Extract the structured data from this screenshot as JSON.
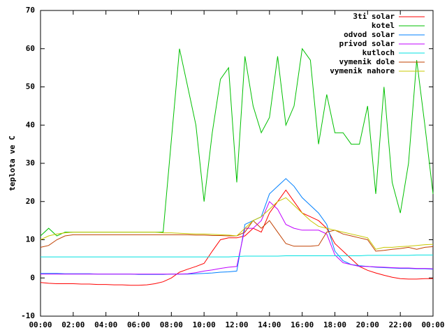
{
  "chart_data": {
    "type": "line",
    "ylabel": "teplota ve C",
    "x": [
      0,
      0.5,
      1,
      1.5,
      2,
      2.5,
      3,
      3.5,
      4,
      4.5,
      5,
      5.5,
      6,
      6.5,
      7,
      7.5,
      8,
      8.5,
      9,
      9.5,
      10,
      10.5,
      11,
      11.5,
      12,
      12.5,
      13,
      13.5,
      14,
      14.5,
      15,
      15.5,
      16,
      16.5,
      17,
      17.5,
      18,
      18.5,
      19,
      19.5,
      20,
      20.5,
      21,
      21.5,
      22,
      22.5,
      23,
      23.5,
      24
    ],
    "xlim": [
      0,
      24
    ],
    "xticks": [
      {
        "value": 0,
        "label": "00:00"
      },
      {
        "value": 2,
        "label": "02:00"
      },
      {
        "value": 4,
        "label": "04:00"
      },
      {
        "value": 6,
        "label": "06:00"
      },
      {
        "value": 8,
        "label": "08:00"
      },
      {
        "value": 10,
        "label": "10:00"
      },
      {
        "value": 12,
        "label": "12:00"
      },
      {
        "value": 14,
        "label": "14:00"
      },
      {
        "value": 16,
        "label": "16:00"
      },
      {
        "value": 18,
        "label": "18:00"
      },
      {
        "value": 20,
        "label": "20:00"
      },
      {
        "value": 22,
        "label": "22:00"
      },
      {
        "value": 24,
        "label": "00:00"
      }
    ],
    "ylim": [
      -10,
      70
    ],
    "yticks": [
      -10,
      0,
      10,
      20,
      30,
      40,
      50,
      60,
      70
    ],
    "grid": false,
    "legend": "top-right",
    "series": [
      {
        "name": "3ti solar",
        "color": "#ff0000",
        "values": [
          -1.2,
          -1.4,
          -1.5,
          -1.5,
          -1.5,
          -1.6,
          -1.6,
          -1.7,
          -1.7,
          -1.8,
          -1.8,
          -1.9,
          -1.9,
          -1.8,
          -1.5,
          -1,
          0,
          1.5,
          2.3,
          3,
          3.8,
          7,
          10,
          10.5,
          10.5,
          11,
          13,
          12,
          17,
          20,
          23,
          20,
          17,
          16,
          15,
          13,
          9,
          7,
          5,
          3,
          2,
          1.3,
          0.7,
          0.2,
          -0.2,
          -0.3,
          -0.3,
          -0.2,
          -0.2
        ]
      },
      {
        "name": "kotel",
        "color": "#00c000",
        "values": [
          11,
          13,
          11,
          12,
          12,
          12,
          12,
          12,
          12,
          12,
          12,
          12,
          12,
          12,
          12,
          12,
          36,
          60,
          50,
          40,
          20,
          38,
          52,
          55,
          25,
          58,
          45,
          38,
          42,
          58,
          40,
          45,
          60,
          57,
          35,
          48,
          38,
          38,
          35,
          35,
          45,
          22,
          50,
          25,
          17,
          30,
          57,
          40,
          22
        ]
      },
      {
        "name": "odvod solar",
        "color": "#0080ff",
        "values": [
          1.2,
          1.2,
          1.2,
          1.1,
          1.1,
          1.1,
          1.1,
          1.0,
          1.0,
          1.0,
          1.0,
          1.0,
          0.9,
          0.9,
          0.9,
          0.9,
          1.0,
          1.0,
          1.0,
          1.1,
          1.2,
          1.3,
          1.5,
          1.6,
          1.8,
          14,
          15,
          16,
          22,
          24,
          26,
          24,
          21,
          19,
          17,
          14,
          7,
          4.5,
          3.5,
          3.2,
          3,
          2.8,
          2.7,
          2.6,
          2.5,
          2.5,
          2.4,
          2.4,
          2.3
        ]
      },
      {
        "name": "privod solar",
        "color": "#c000ff",
        "values": [
          1,
          1,
          1,
          1,
          1,
          1,
          1,
          1,
          1,
          1,
          1,
          1,
          1,
          1,
          1,
          1,
          1,
          1,
          1.1,
          1.4,
          1.8,
          2.1,
          2.5,
          2.8,
          3,
          13,
          13,
          15,
          20,
          18,
          14,
          13,
          12.5,
          12.5,
          12.5,
          11.5,
          6,
          4,
          3.5,
          3,
          3,
          2.9,
          2.8,
          2.7,
          2.6,
          2.6,
          2.5,
          2.5,
          2.4
        ]
      },
      {
        "name": "kutloch",
        "color": "#00e0e0",
        "values": [
          5.5,
          5.5,
          5.5,
          5.5,
          5.5,
          5.5,
          5.5,
          5.5,
          5.5,
          5.5,
          5.5,
          5.5,
          5.5,
          5.5,
          5.5,
          5.5,
          5.5,
          5.5,
          5.5,
          5.5,
          5.5,
          5.5,
          5.5,
          5.5,
          5.6,
          5.7,
          5.7,
          5.7,
          5.7,
          5.7,
          5.8,
          5.8,
          5.8,
          5.8,
          5.8,
          5.8,
          5.8,
          5.8,
          5.8,
          5.8,
          5.9,
          5.9,
          5.9,
          5.9,
          5.9,
          5.9,
          6,
          6,
          6
        ]
      },
      {
        "name": "vymenik dole",
        "color": "#c04000",
        "values": [
          8,
          8.5,
          10,
          11,
          11.3,
          11.3,
          11.3,
          11.3,
          11.3,
          11.3,
          11.3,
          11.3,
          11.3,
          11.3,
          11.3,
          11.3,
          11.3,
          11.3,
          11.3,
          11.2,
          11.2,
          11.1,
          11.1,
          11,
          11,
          12,
          15,
          13,
          15,
          12,
          9,
          8.3,
          8.3,
          8.3,
          8.5,
          12,
          12.5,
          11.5,
          11,
          10.5,
          10,
          7,
          7.2,
          7.5,
          7.7,
          8,
          7.5,
          8,
          8.2
        ]
      },
      {
        "name": "vymenik nahore",
        "color": "#c8c800",
        "values": [
          10,
          11,
          11.5,
          11.8,
          12,
          12,
          12,
          12,
          12,
          12,
          12,
          12,
          12,
          12,
          12,
          11.8,
          11.8,
          11.7,
          11.6,
          11.5,
          11.5,
          11.4,
          11.3,
          11.2,
          11,
          13,
          15,
          16,
          18,
          20,
          21,
          19,
          17,
          15,
          13.5,
          13,
          12.5,
          12,
          11.5,
          11,
          10.5,
          7.5,
          8,
          8,
          8.2,
          8.3,
          8.5,
          8.7,
          8.8
        ]
      }
    ]
  }
}
